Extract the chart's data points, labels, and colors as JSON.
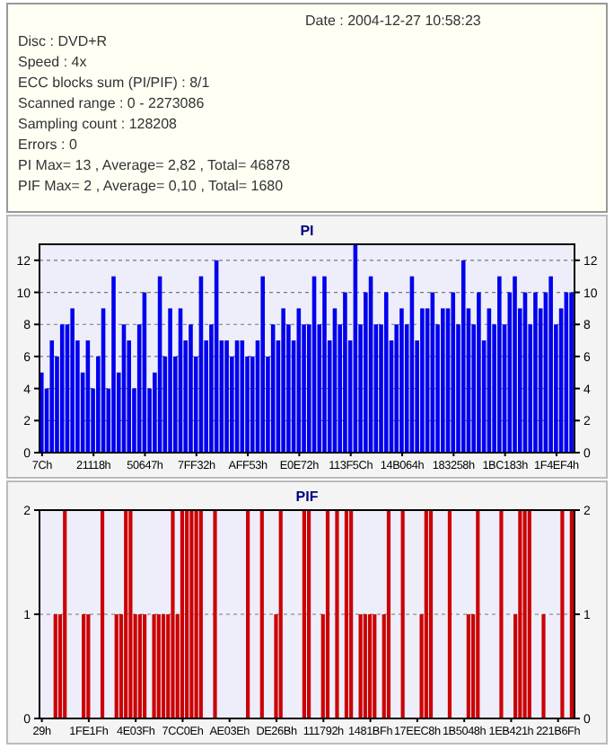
{
  "chart_data": [
    {
      "type": "other",
      "annotations": [
        "Date : 2004-12-27 10:58:23",
        "Disc : DVD+R",
        "Speed : 4x",
        "ECC blocks sum (PI/PIF) : 8/1",
        "Scanned range : 0 - 2273086",
        "Sampling count : 128208",
        "Errors : 0",
        "PI Max= 13 , Average= 2,82 , Total= 46878",
        "PIF Max= 2 , Average= 0,10 , Total= 1680"
      ]
    },
    {
      "type": "bar",
      "title": "PI",
      "color": "#0000ee",
      "grid": "y",
      "ylim": [
        0,
        13
      ],
      "yticks": [
        0,
        2,
        4,
        6,
        8,
        10,
        12
      ],
      "y2lim": [
        0,
        13
      ],
      "y2ticks": [
        0,
        2,
        4,
        6,
        8,
        10,
        12
      ],
      "categories": [
        "7Ch",
        null,
        null,
        null,
        null,
        null,
        null,
        null,
        null,
        null,
        "21118h",
        null,
        null,
        null,
        null,
        null,
        null,
        null,
        null,
        null,
        "50647h",
        null,
        null,
        null,
        null,
        null,
        null,
        null,
        null,
        null,
        "7FF32h",
        null,
        null,
        null,
        null,
        null,
        null,
        null,
        null,
        null,
        "AFF53h",
        null,
        null,
        null,
        null,
        null,
        null,
        null,
        null,
        null,
        "E0E72h",
        null,
        null,
        null,
        null,
        null,
        null,
        null,
        null,
        null,
        "113F5Ch",
        null,
        null,
        null,
        null,
        null,
        null,
        null,
        null,
        null,
        "14B064h",
        null,
        null,
        null,
        null,
        null,
        null,
        null,
        null,
        null,
        "183258h",
        null,
        null,
        null,
        null,
        null,
        null,
        null,
        null,
        null,
        "1BC183h",
        null,
        null,
        null,
        null,
        null,
        null,
        null,
        null,
        null,
        "1F4EF4h",
        null,
        null,
        null
      ],
      "values": [
        5,
        4,
        7,
        6,
        8,
        8,
        9,
        7,
        5,
        7,
        4,
        6,
        9,
        4,
        11,
        5,
        8,
        7,
        4,
        8,
        10,
        4,
        5,
        11,
        6,
        9,
        6,
        9,
        7,
        8,
        6,
        11,
        7,
        8,
        12,
        7,
        7,
        6,
        7,
        7,
        6,
        6,
        7,
        11,
        6,
        8,
        7,
        9,
        8,
        7,
        9,
        8,
        8,
        11,
        8,
        11,
        7,
        9,
        8,
        10,
        7,
        13,
        8,
        10,
        11,
        8,
        8,
        10,
        7,
        8,
        9,
        8,
        11,
        7,
        9,
        9,
        10,
        8,
        9,
        9,
        10,
        8,
        12,
        9,
        8,
        10,
        7,
        9,
        8,
        11,
        8,
        10,
        11,
        9,
        10,
        8,
        10,
        9,
        10,
        11,
        8,
        9,
        10,
        10
      ]
    },
    {
      "type": "bar",
      "title": "PIF",
      "color": "#cc0000",
      "grid": "y",
      "ylim": [
        0,
        2
      ],
      "yticks": [
        0,
        1,
        2
      ],
      "y2lim": [
        0,
        2
      ],
      "y2ticks": [
        0,
        1,
        2
      ],
      "categories": [
        "29h",
        null,
        null,
        null,
        null,
        null,
        null,
        null,
        null,
        null,
        "1FE1Fh",
        null,
        null,
        null,
        null,
        null,
        null,
        null,
        null,
        null,
        "4E03Fh",
        null,
        null,
        null,
        null,
        null,
        null,
        null,
        null,
        null,
        "7CC0Eh",
        null,
        null,
        null,
        null,
        null,
        null,
        null,
        null,
        null,
        "AE03Eh",
        null,
        null,
        null,
        null,
        null,
        null,
        null,
        null,
        null,
        "DE26Bh",
        null,
        null,
        null,
        null,
        null,
        null,
        null,
        null,
        null,
        "111792h",
        null,
        null,
        null,
        null,
        null,
        null,
        null,
        null,
        null,
        "1481BFh",
        null,
        null,
        null,
        null,
        null,
        null,
        null,
        null,
        null,
        "17EEC8h",
        null,
        null,
        null,
        null,
        null,
        null,
        null,
        null,
        null,
        "1B5048h",
        null,
        null,
        null,
        null,
        null,
        null,
        null,
        null,
        null,
        "1EB421h",
        null,
        null,
        null,
        null,
        null,
        null,
        null,
        null,
        null,
        "221B6Fh",
        null,
        null,
        null
      ],
      "values": [
        0,
        0,
        0,
        1,
        1,
        2,
        0,
        0,
        0,
        1,
        1,
        0,
        0,
        2,
        0,
        0,
        1,
        1,
        2,
        2,
        1,
        1,
        1,
        0,
        1,
        1,
        1,
        1,
        2,
        1,
        2,
        2,
        2,
        2,
        2,
        0,
        0,
        2,
        0,
        0,
        0,
        0,
        0,
        0,
        2,
        0,
        0,
        2,
        0,
        0,
        1,
        2,
        0,
        0,
        0,
        0,
        2,
        2,
        0,
        0,
        1,
        2,
        0,
        2,
        0,
        2,
        2,
        0,
        1,
        1,
        1,
        1,
        0,
        1,
        2,
        0,
        0,
        2,
        0,
        0,
        0,
        1,
        2,
        2,
        0,
        0,
        0,
        2,
        0,
        0,
        0,
        1,
        1,
        2,
        0,
        0,
        0,
        0,
        2,
        0,
        0,
        1,
        2,
        2,
        2,
        0,
        0,
        1,
        0,
        0,
        0,
        2,
        0,
        2
      ]
    }
  ]
}
